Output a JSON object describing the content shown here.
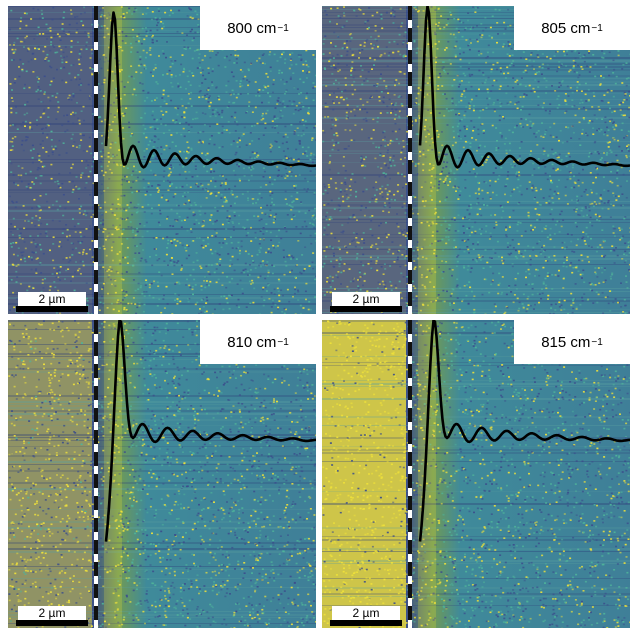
{
  "panels": [
    {
      "label": "800 cm",
      "exponent": "−1",
      "scale": "2 µm"
    },
    {
      "label": "805 cm",
      "exponent": "−1",
      "scale": "2 µm"
    },
    {
      "label": "810 cm",
      "exponent": "−1",
      "scale": "2 µm"
    },
    {
      "label": "815 cm",
      "exponent": "−1",
      "scale": "2 µm"
    }
  ],
  "colors": {
    "background_dark": "#3b4e8c",
    "background_mid": "#3f8a9a",
    "highlight": "#f0e23a",
    "profile_line": "#000000"
  }
}
